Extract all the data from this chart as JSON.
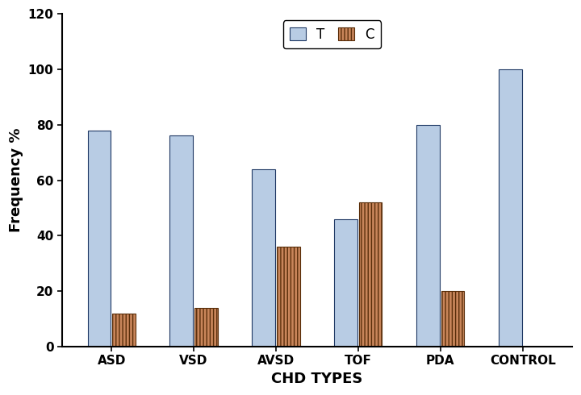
{
  "categories": [
    "ASD",
    "VSD",
    "AVSD",
    "TOF",
    "PDA",
    "CONTROL"
  ],
  "T_values": [
    78,
    76,
    64,
    46,
    80,
    100
  ],
  "C_values": [
    12,
    14,
    36,
    52,
    20,
    0
  ],
  "T_color": "#b8cce4",
  "T_edge_color": "#1f3864",
  "C_color": "#c8855a",
  "C_edge_color": "#5a2e0a",
  "xlabel": "CHD TYPES",
  "ylabel": "Frequency %",
  "ylim": [
    0,
    120
  ],
  "yticks": [
    0,
    20,
    40,
    60,
    80,
    100,
    120
  ],
  "legend_labels": [
    "T",
    "C"
  ],
  "bar_width": 0.28,
  "xlabel_fontsize": 13,
  "ylabel_fontsize": 13,
  "tick_fontsize": 11,
  "legend_fontsize": 12,
  "background_color": "#ffffff"
}
